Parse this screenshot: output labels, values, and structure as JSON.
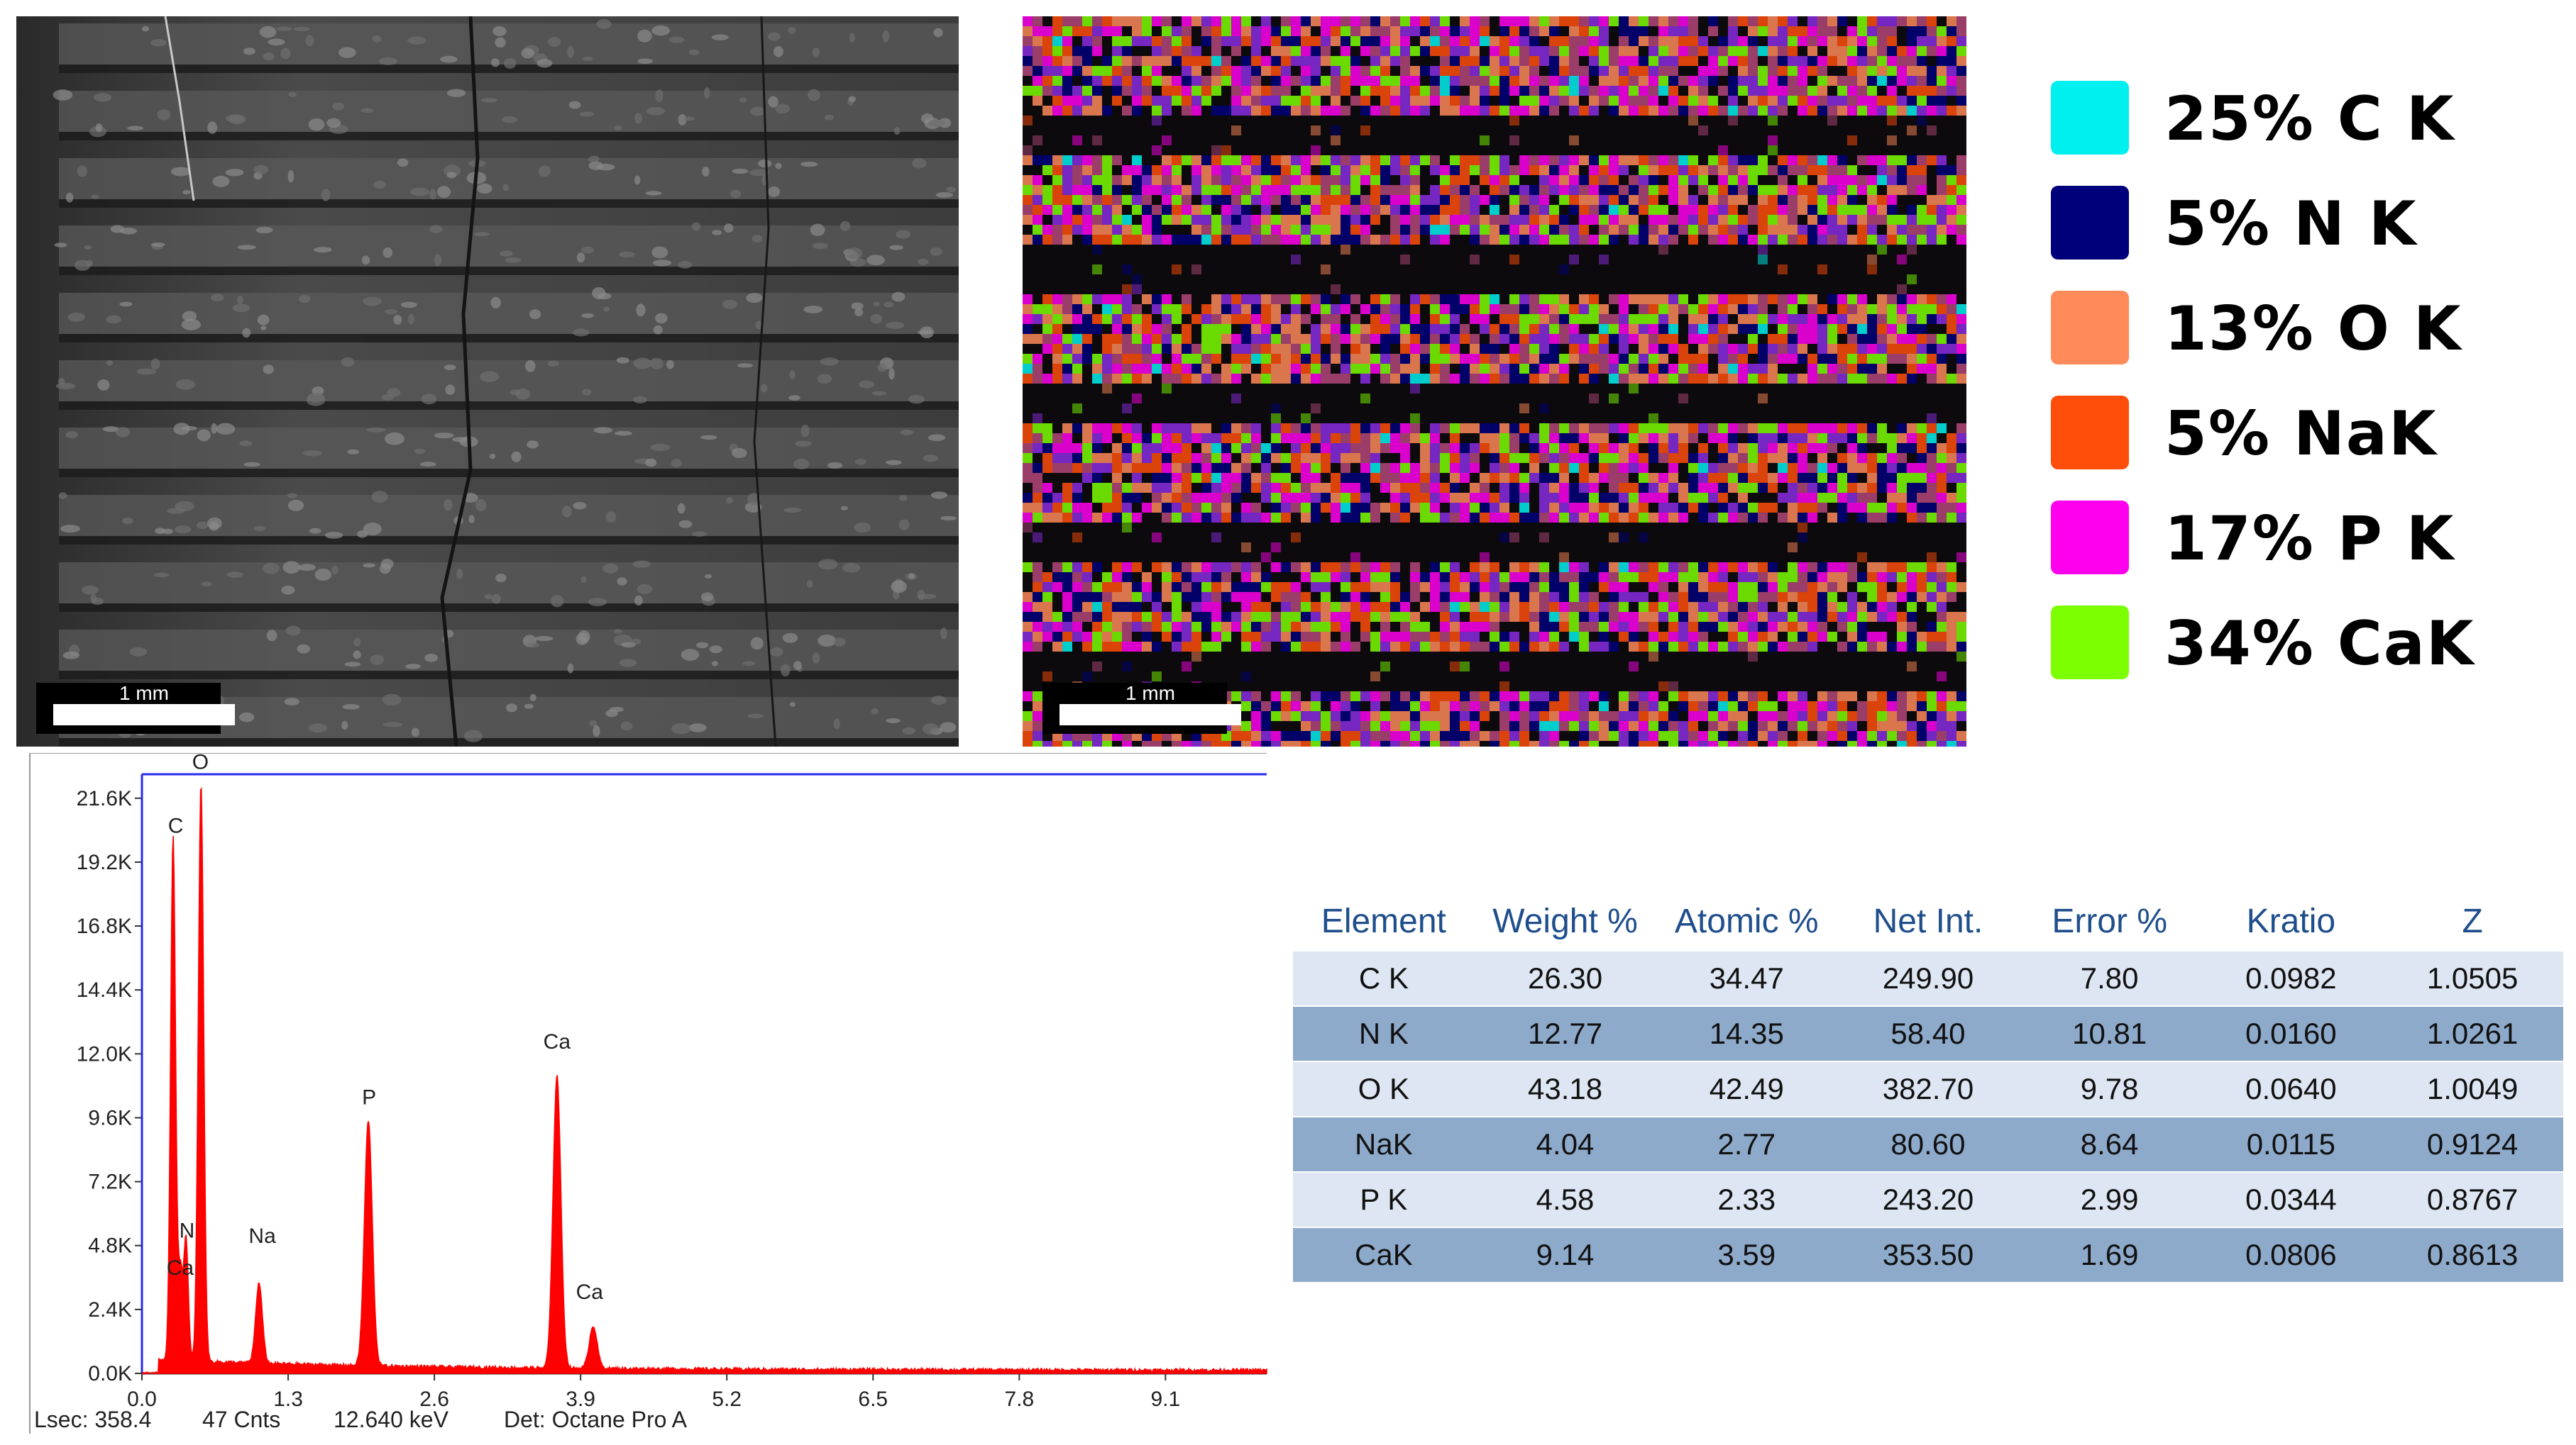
{
  "sem_image": {
    "scale_label": "1 mm"
  },
  "eds_map": {
    "scale_label": "1 mm"
  },
  "legend": [
    {
      "label": "25% C K",
      "color": "#00f0f0"
    },
    {
      "label": "5% N K",
      "color": "#00007a"
    },
    {
      "label": "13% O K",
      "color": "#ff8a5a"
    },
    {
      "label": "5% NaK",
      "color": "#ff4d0a"
    },
    {
      "label": "17% P K",
      "color": "#ff00ee"
    },
    {
      "label": "34% CaK",
      "color": "#7cff00"
    }
  ],
  "chart_data": {
    "type": "line",
    "title": "",
    "xlabel": "",
    "ylabel": "",
    "xlim": [
      0,
      10.0
    ],
    "ylim": [
      0,
      22500
    ],
    "x_ticks": [
      "0.0",
      "1.3",
      "2.6",
      "3.9",
      "5.2",
      "6.5",
      "7.8",
      "9.1"
    ],
    "x_tick_values": [
      0.0,
      1.3,
      2.6,
      3.9,
      5.2,
      6.5,
      7.8,
      9.1
    ],
    "y_ticks": [
      "0.0K",
      "2.4K",
      "4.8K",
      "7.2K",
      "9.6K",
      "12.0K",
      "14.4K",
      "16.8K",
      "19.2K",
      "21.6K"
    ],
    "y_tick_values": [
      0,
      2400,
      4800,
      7200,
      9600,
      12000,
      14400,
      16800,
      19200,
      21600
    ],
    "series_color": "#ff0000",
    "peaks": [
      {
        "label": "C",
        "energy": 0.277,
        "counts": 19700,
        "width": 0.022
      },
      {
        "label": "Ca",
        "energy": 0.341,
        "counts": 3300,
        "width": 0.02
      },
      {
        "label": "N",
        "energy": 0.392,
        "counts": 4600,
        "width": 0.02
      },
      {
        "label": "O",
        "energy": 0.525,
        "counts": 21700,
        "width": 0.024
      },
      {
        "label": "Na",
        "energy": 1.041,
        "counts": 3000,
        "width": 0.03
      },
      {
        "label": "P",
        "energy": 2.013,
        "counts": 9200,
        "width": 0.035
      },
      {
        "label": "Ca",
        "energy": 3.69,
        "counts": 11000,
        "width": 0.035
      },
      {
        "label": "Ca",
        "energy": 4.012,
        "counts": 1600,
        "width": 0.035
      }
    ],
    "peak_labels": [
      {
        "label": "C",
        "energy": 0.3,
        "counts": 20300
      },
      {
        "label": "O",
        "energy": 0.52,
        "counts": 22700
      },
      {
        "label": "N",
        "energy": 0.4,
        "counts": 5100
      },
      {
        "label": "Ca",
        "energy": 0.34,
        "counts": 3700
      },
      {
        "label": "Na",
        "energy": 1.07,
        "counts": 4900
      },
      {
        "label": "P",
        "energy": 2.02,
        "counts": 10100
      },
      {
        "label": "Ca",
        "energy": 3.69,
        "counts": 12200
      },
      {
        "label": "Ca",
        "energy": 3.98,
        "counts": 2800
      }
    ]
  },
  "status_bar": {
    "lsec": "Lsec: 358.4",
    "cnts": "47 Cnts",
    "kev": "12.640 keV",
    "det": "Det: Octane Pro A"
  },
  "table": {
    "headers": [
      "Element",
      "Weight %",
      "Atomic %",
      "Net Int.",
      "Error %",
      "Kratio",
      "Z"
    ],
    "rows": [
      [
        "C K",
        "26.30",
        "34.47",
        "249.90",
        "7.80",
        "0.0982",
        "1.0505"
      ],
      [
        "N K",
        "12.77",
        "14.35",
        "58.40",
        "10.81",
        "0.0160",
        "1.0261"
      ],
      [
        "O K",
        "43.18",
        "42.49",
        "382.70",
        "9.78",
        "0.0640",
        "1.0049"
      ],
      [
        "NaK",
        "4.04",
        "2.77",
        "80.60",
        "8.64",
        "0.0115",
        "0.9124"
      ],
      [
        "P K",
        "4.58",
        "2.33",
        "243.20",
        "2.99",
        "0.0344",
        "0.8767"
      ],
      [
        "CaK",
        "9.14",
        "3.59",
        "353.50",
        "1.69",
        "0.0806",
        "0.8613"
      ]
    ]
  }
}
